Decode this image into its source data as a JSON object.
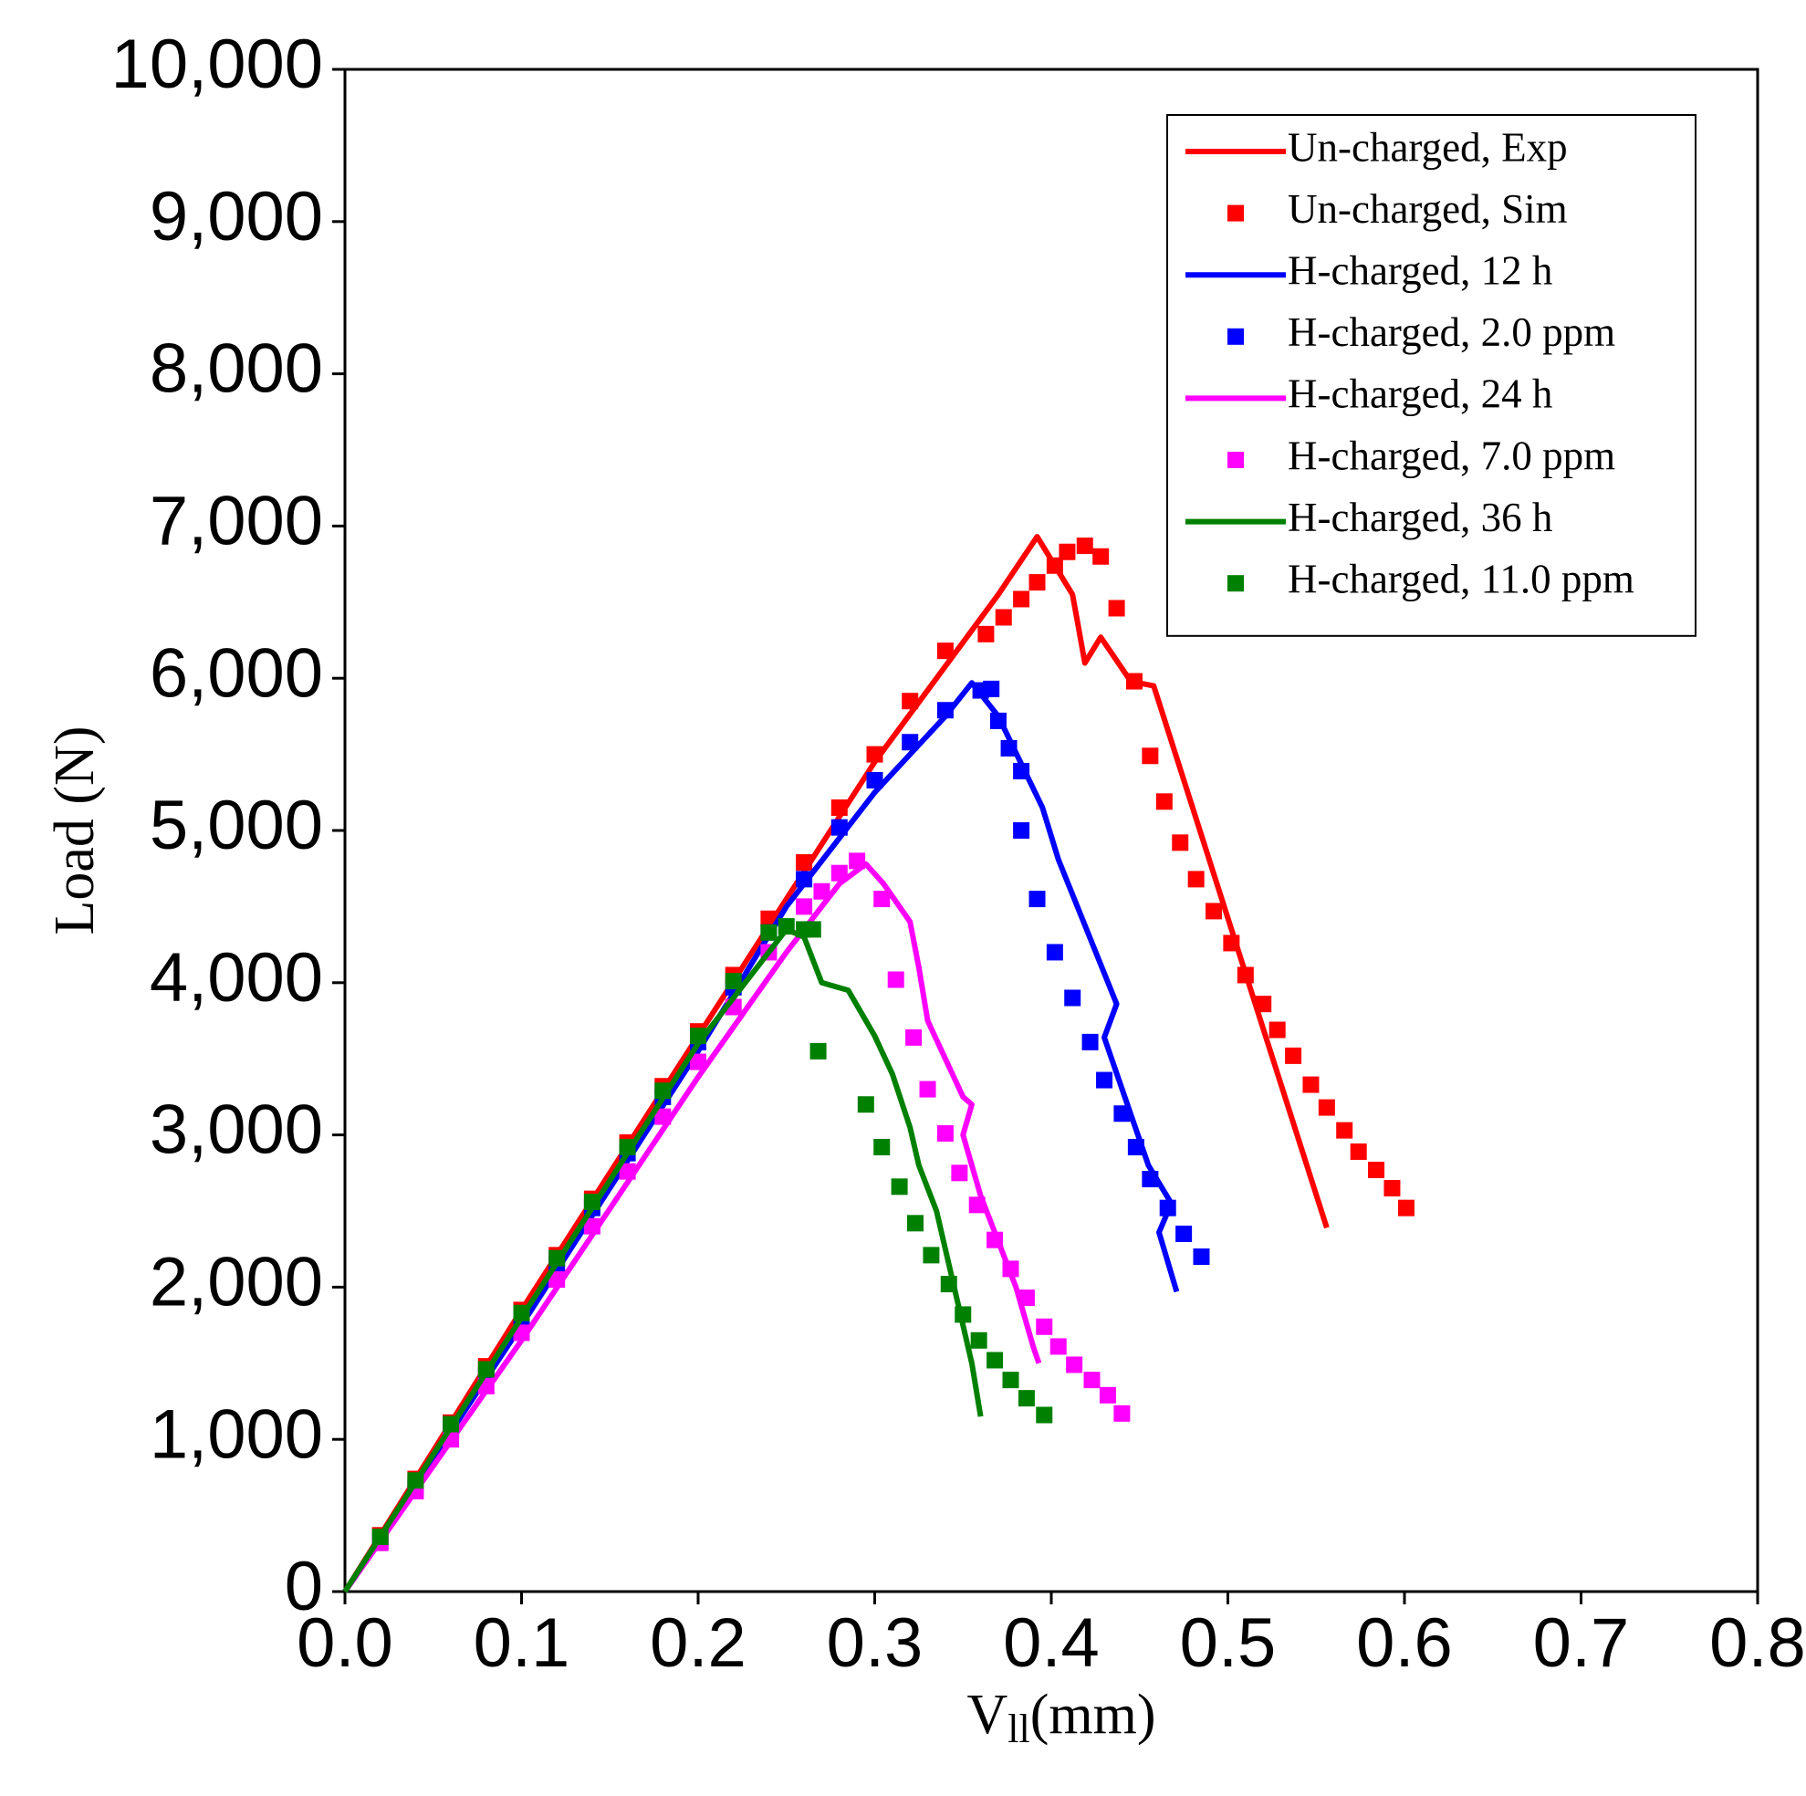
{
  "chart_data": {
    "type": "line",
    "xlabel": {
      "main": "V",
      "sub": "ll",
      "unit": "(mm)"
    },
    "ylabel": "Load (N)",
    "xlim": [
      0,
      0.8
    ],
    "ylim": [
      0,
      10000
    ],
    "xticks": [
      {
        "value": 0,
        "label": "0.0"
      },
      0.1,
      0.2,
      0.3,
      0.4,
      0.5,
      0.6,
      0.7,
      0.8
    ],
    "yticks": [
      0,
      {
        "value": 1000,
        "label": "1,000"
      },
      {
        "value": 2000,
        "label": "2,000"
      },
      {
        "value": 3000,
        "label": "3,000"
      },
      {
        "value": 4000,
        "label": "4,000"
      },
      {
        "value": 5000,
        "label": "5,000"
      },
      {
        "value": 6000,
        "label": "6,000"
      },
      {
        "value": 7000,
        "label": "7,000"
      },
      {
        "value": 8000,
        "label": "8,000"
      },
      {
        "value": 9000,
        "label": "9,000"
      },
      {
        "value": 10000,
        "label": "10,000"
      }
    ],
    "legend": "upper right",
    "series": [
      {
        "name": "Un-charged, Exp",
        "color": "#ff0000",
        "style": "line",
        "x": [
          0,
          0.1,
          0.2,
          0.3,
          0.37,
          0.392,
          0.412,
          0.415,
          0.419,
          0.428,
          0.445,
          0.458,
          0.556
        ],
        "values": [
          0,
          1850,
          3650,
          5450,
          6550,
          6930,
          6550,
          6360,
          6100,
          6270,
          5980,
          5950,
          2390
        ]
      },
      {
        "name": "Un-charged, Sim",
        "color": "#ff0000",
        "style": "marker",
        "x": [
          0.02,
          0.04,
          0.06,
          0.08,
          0.1,
          0.12,
          0.14,
          0.16,
          0.18,
          0.2,
          0.22,
          0.24,
          0.26,
          0.28,
          0.3,
          0.32,
          0.34,
          0.363,
          0.373,
          0.383,
          0.392,
          0.402,
          0.409,
          0.419,
          0.428,
          0.437,
          0.447,
          0.456,
          0.464,
          0.473,
          0.482,
          0.492,
          0.502,
          0.51,
          0.52,
          0.528,
          0.537,
          0.547,
          0.556,
          0.566,
          0.574,
          0.584,
          0.593,
          0.601
        ],
        "values": [
          370,
          740,
          1110,
          1480,
          1850,
          2210,
          2580,
          2950,
          3320,
          3680,
          4050,
          4420,
          4790,
          5150,
          5500,
          5850,
          6180,
          6290,
          6400,
          6520,
          6630,
          6740,
          6830,
          6870,
          6800,
          6460,
          5980,
          5490,
          5190,
          4920,
          4680,
          4470,
          4260,
          4050,
          3860,
          3690,
          3520,
          3330,
          3180,
          3030,
          2890,
          2770,
          2650,
          2520
        ]
      },
      {
        "name": "H-charged, 12 h",
        "color": "#0000ff",
        "style": "line",
        "x": [
          0,
          0.1,
          0.2,
          0.25,
          0.3,
          0.34,
          0.355,
          0.37,
          0.395,
          0.404,
          0.437,
          0.43,
          0.455,
          0.468,
          0.461,
          0.471
        ],
        "values": [
          0,
          1750,
          3550,
          4500,
          5250,
          5750,
          5970,
          5750,
          5150,
          4810,
          3860,
          3640,
          2800,
          2550,
          2360,
          1970
        ]
      },
      {
        "name": "H-charged, 2.0 ppm",
        "color": "#0000ff",
        "style": "marker",
        "x": [
          0.02,
          0.04,
          0.06,
          0.08,
          0.1,
          0.12,
          0.14,
          0.16,
          0.18,
          0.2,
          0.22,
          0.24,
          0.26,
          0.28,
          0.3,
          0.32,
          0.34,
          0.36,
          0.366,
          0.37,
          0.376,
          0.383,
          0.383,
          0.392,
          0.402,
          0.412,
          0.422,
          0.43,
          0.44,
          0.448,
          0.456,
          0.466,
          0.475,
          0.485
        ],
        "values": [
          330,
          690,
          1060,
          1420,
          1790,
          2150,
          2520,
          2880,
          3250,
          3610,
          3970,
          4330,
          4680,
          5020,
          5330,
          5580,
          5790,
          5920,
          5930,
          5720,
          5540,
          5390,
          5000,
          4550,
          4200,
          3900,
          3610,
          3360,
          3140,
          2920,
          2710,
          2520,
          2350,
          2200
        ]
      },
      {
        "name": "H-charged, 24 h",
        "color": "#ff00ff",
        "style": "line",
        "x": [
          0,
          0.1,
          0.2,
          0.25,
          0.28,
          0.295,
          0.305,
          0.32,
          0.325,
          0.33,
          0.35,
          0.355,
          0.35,
          0.36,
          0.38,
          0.39,
          0.393
        ],
        "values": [
          0,
          1650,
          3380,
          4200,
          4650,
          4780,
          4650,
          4400,
          4100,
          3750,
          3250,
          3200,
          3000,
          2600,
          2000,
          1600,
          1500
        ]
      },
      {
        "name": "H-charged, 7.0 ppm",
        "color": "#ff00ff",
        "style": "marker",
        "x": [
          0.02,
          0.04,
          0.06,
          0.08,
          0.1,
          0.12,
          0.14,
          0.16,
          0.18,
          0.2,
          0.22,
          0.24,
          0.26,
          0.27,
          0.28,
          0.29,
          0.304,
          0.312,
          0.322,
          0.33,
          0.34,
          0.348,
          0.358,
          0.368,
          0.377,
          0.386,
          0.396,
          0.404,
          0.413,
          0.423,
          0.432,
          0.44
        ],
        "values": [
          320,
          660,
          1000,
          1350,
          1700,
          2050,
          2400,
          2760,
          3120,
          3480,
          3840,
          4200,
          4500,
          4600,
          4720,
          4800,
          4550,
          4020,
          3640,
          3300,
          3010,
          2750,
          2540,
          2310,
          2120,
          1930,
          1740,
          1610,
          1490,
          1390,
          1290,
          1170
        ]
      },
      {
        "name": "H-charged, 36 h",
        "color": "#008000",
        "style": "line",
        "x": [
          0,
          0.1,
          0.2,
          0.25,
          0.26,
          0.27,
          0.285,
          0.3,
          0.31,
          0.32,
          0.325,
          0.335,
          0.345,
          0.355,
          0.36
        ],
        "values": [
          0,
          1800,
          3600,
          4350,
          4300,
          4000,
          3950,
          3650,
          3400,
          3050,
          2800,
          2500,
          2000,
          1500,
          1150
        ]
      },
      {
        "name": "H-charged, 11.0 ppm",
        "color": "#008000",
        "style": "marker",
        "x": [
          0.02,
          0.04,
          0.06,
          0.08,
          0.1,
          0.12,
          0.14,
          0.16,
          0.18,
          0.2,
          0.22,
          0.24,
          0.25,
          0.26,
          0.265,
          0.268,
          0.295,
          0.304,
          0.314,
          0.323,
          0.332,
          0.342,
          0.35,
          0.359,
          0.368,
          0.377,
          0.386,
          0.396
        ],
        "values": [
          360,
          730,
          1100,
          1460,
          1830,
          2190,
          2560,
          2920,
          3290,
          3650,
          4010,
          4330,
          4370,
          4350,
          4350,
          3550,
          3200,
          2920,
          2660,
          2420,
          2210,
          2020,
          1820,
          1650,
          1520,
          1390,
          1270,
          1160
        ]
      }
    ]
  }
}
